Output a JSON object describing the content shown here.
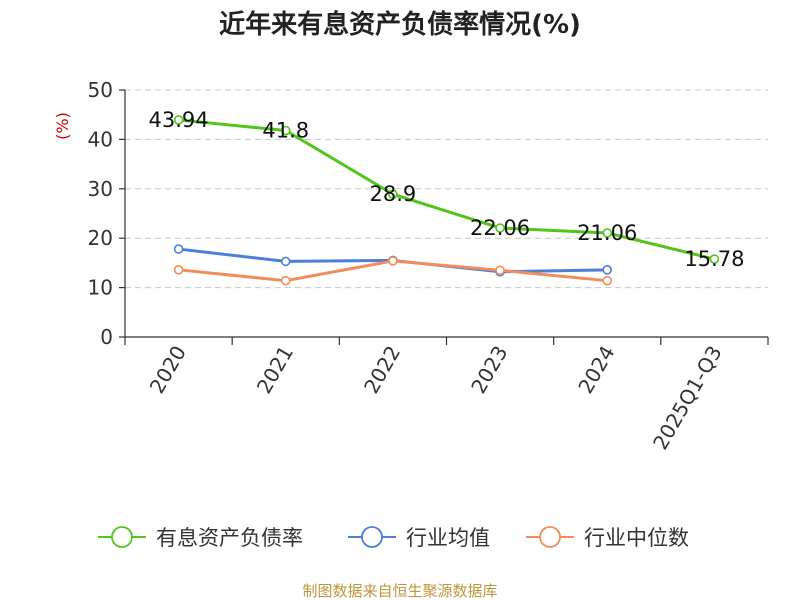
{
  "chart_data": {
    "type": "line",
    "title": "近年来有息资产负债率情况(%)",
    "ylabel": "(%)",
    "categories": [
      "2020",
      "2021",
      "2022",
      "2023",
      "2024",
      "2025Q1-Q3"
    ],
    "ylim": [
      0,
      50
    ],
    "yticks": [
      0,
      10,
      20,
      30,
      40,
      50
    ],
    "grid": true,
    "legend_position": "bottom",
    "series": [
      {
        "name": "有息资产负债率",
        "color": "#52c41a",
        "values": [
          43.94,
          41.8,
          28.9,
          22.06,
          21.06,
          15.78
        ],
        "labels": [
          "43.94",
          "41.8",
          "28.9",
          "22.06",
          "21.06",
          "15.78"
        ]
      },
      {
        "name": "行业均值",
        "color": "#4e7fd8",
        "values": [
          17.8,
          15.3,
          15.5,
          13.2,
          13.6,
          null
        ]
      },
      {
        "name": "行业中位数",
        "color": "#f28c5c",
        "values": [
          13.6,
          11.4,
          15.4,
          13.5,
          11.4,
          null
        ]
      }
    ]
  },
  "source": "制图数据来自恒生聚源数据库"
}
